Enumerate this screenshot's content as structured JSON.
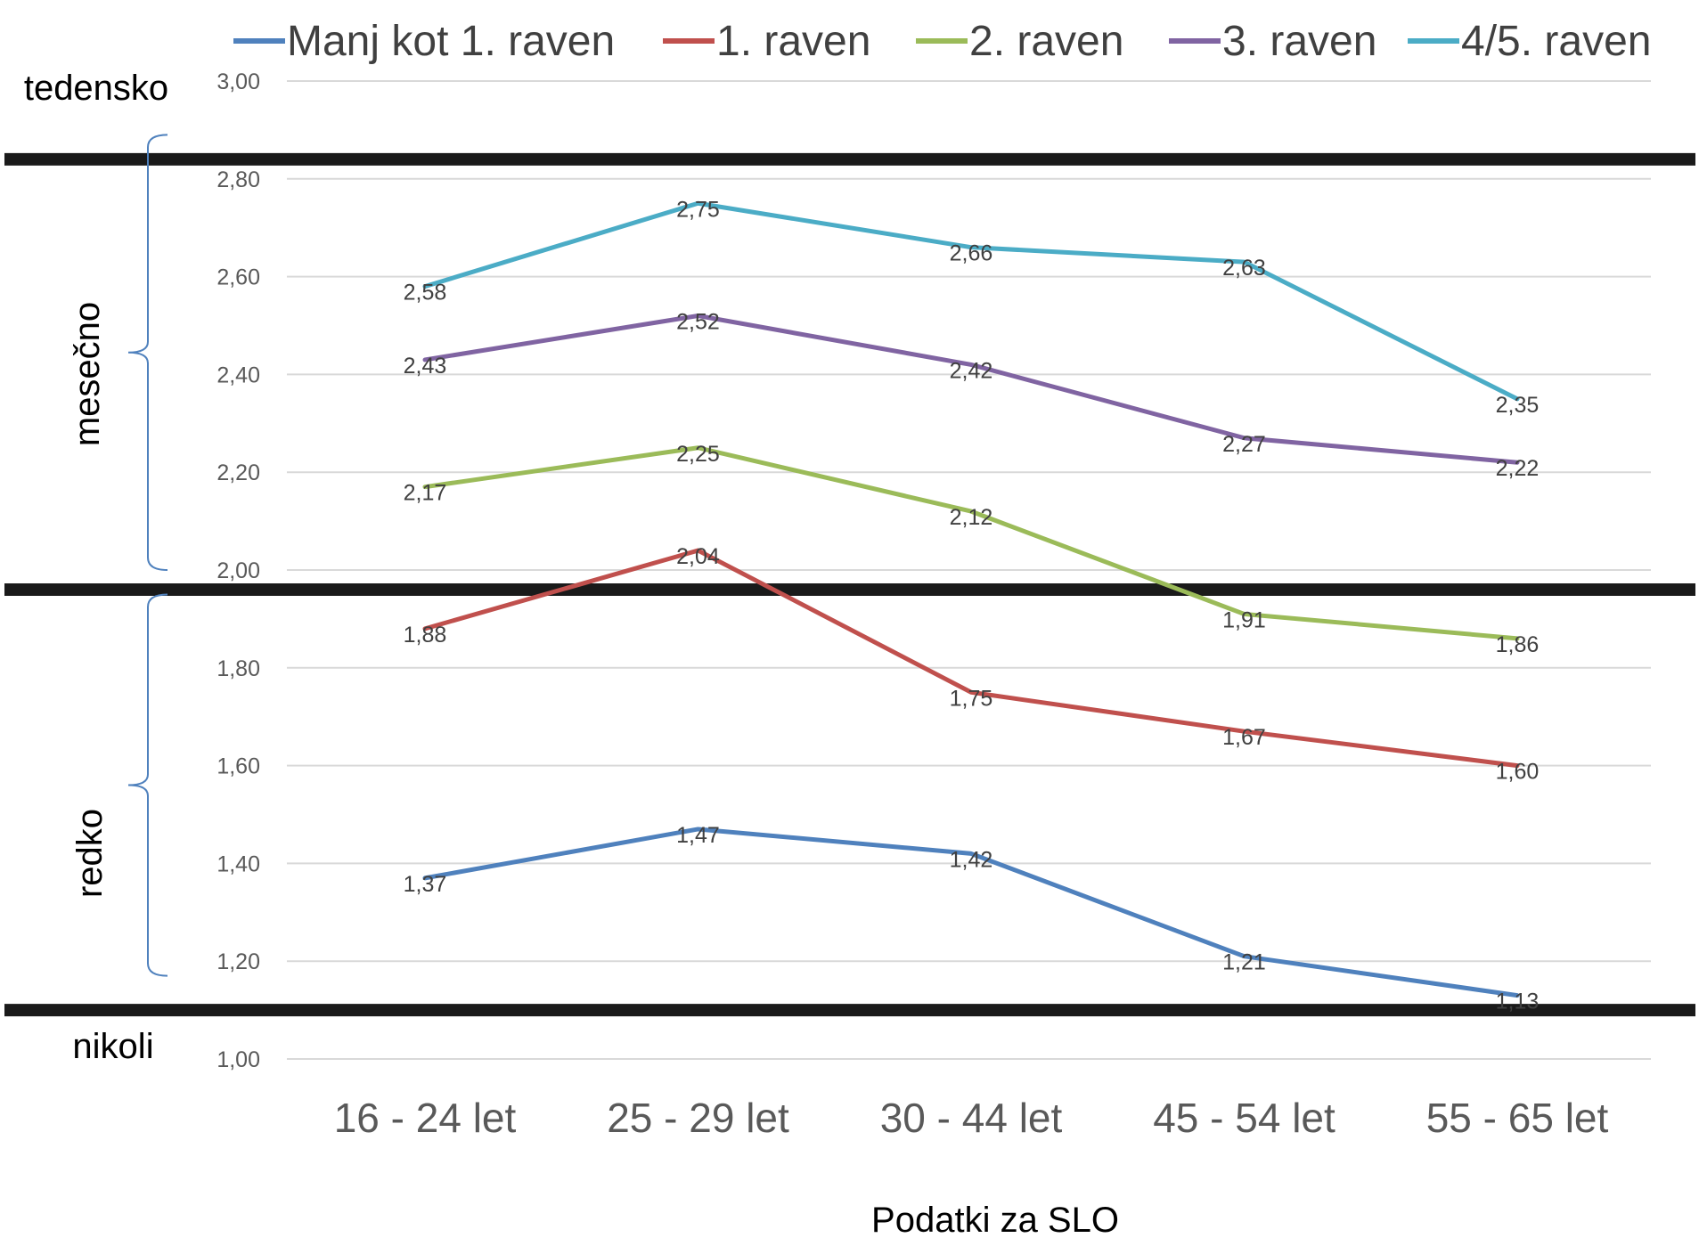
{
  "chart_data": {
    "type": "line",
    "categories": [
      "16 - 24 let",
      "25 - 29 let",
      "30 - 44 let",
      "45 - 54 let",
      "55 - 65 let"
    ],
    "series": [
      {
        "name": "Manj kot 1. raven",
        "color": "#4F81BD",
        "values": [
          1.37,
          1.47,
          1.42,
          1.21,
          1.13
        ],
        "labels": [
          "1,37",
          "1,47",
          "1,42",
          "1,21",
          "1,13"
        ]
      },
      {
        "name": "1. raven",
        "color": "#C0504D",
        "values": [
          1.88,
          2.04,
          1.75,
          1.67,
          1.6
        ],
        "labels": [
          "1,88",
          "2,04",
          "1,75",
          "1,67",
          "1,60"
        ]
      },
      {
        "name": "2. raven",
        "color": "#9BBB59",
        "values": [
          2.17,
          2.25,
          2.12,
          1.91,
          1.86
        ],
        "labels": [
          "2,17",
          "2,25",
          "2,12",
          "1,91",
          "1,86"
        ]
      },
      {
        "name": "3. raven",
        "color": "#8064A2",
        "values": [
          2.43,
          2.52,
          2.42,
          2.27,
          2.22
        ],
        "labels": [
          "2,43",
          "2,52",
          "2,42",
          "2,27",
          "2,22"
        ]
      },
      {
        "name": "4/5. raven",
        "color": "#4BACC6",
        "values": [
          2.58,
          2.75,
          2.66,
          2.63,
          2.35
        ],
        "labels": [
          "2,58",
          "2,75",
          "2,66",
          "2,63",
          "2,35"
        ]
      }
    ],
    "ylim": [
      1.0,
      3.0
    ],
    "yticks": [
      1.0,
      1.2,
      1.4,
      1.6,
      1.8,
      2.0,
      2.2,
      2.4,
      2.6,
      2.8,
      3.0
    ],
    "ytick_labels": [
      "1,00",
      "1,20",
      "1,40",
      "1,60",
      "1,80",
      "2,00",
      "2,20",
      "2,40",
      "2,60",
      "2,80",
      "3,00"
    ],
    "xlabel": "Podatki za SLO",
    "grid": true,
    "legend": "top",
    "band_labels": {
      "tedensko": "tedensko",
      "mesecno": "mesečno",
      "redko": "redko",
      "nikoli": "nikoli"
    },
    "thresholds": [
      2.84,
      1.96,
      1.1
    ],
    "brackets": [
      [
        2.0,
        2.89
      ],
      [
        1.17,
        1.95
      ]
    ]
  }
}
